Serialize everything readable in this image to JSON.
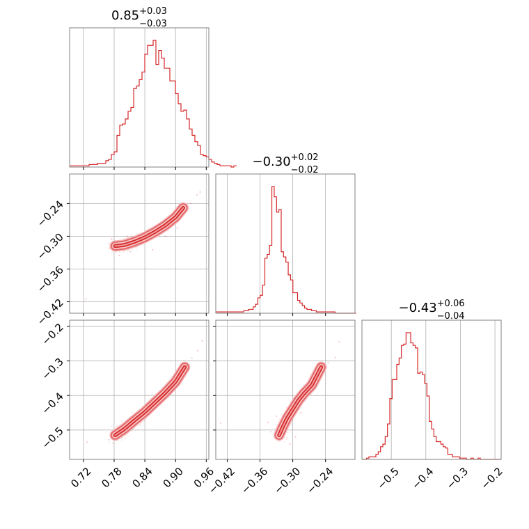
{
  "chart_data": {
    "type": "corner",
    "color": "#d62728",
    "parameters": [
      {
        "title_main": "0.85",
        "title_plus": "+0.03",
        "title_minus": "−0.03",
        "range": [
          0.693,
          0.965
        ],
        "ticks": [
          {
            "v": 0.72,
            "label": "0.72"
          },
          {
            "v": 0.78,
            "label": "0.78"
          },
          {
            "v": 0.84,
            "label": "0.84"
          },
          {
            "v": 0.9,
            "label": "0.90"
          },
          {
            "v": 0.96,
            "label": "0.96"
          }
        ]
      },
      {
        "title_main": "−0.30",
        "title_plus": "+0.02",
        "title_minus": "−0.02",
        "range": [
          -0.441,
          -0.186
        ],
        "ticks": [
          {
            "v": -0.42,
            "label": "−0.42"
          },
          {
            "v": -0.36,
            "label": "−0.36"
          },
          {
            "v": -0.3,
            "label": "−0.30"
          },
          {
            "v": -0.24,
            "label": "−0.24"
          }
        ]
      },
      {
        "title_main": "−0.43",
        "title_plus": "+0.06",
        "title_minus": "−0.04",
        "range": [
          -0.585,
          -0.182
        ],
        "ticks": [
          {
            "v": -0.5,
            "label": "−0.5"
          },
          {
            "v": -0.4,
            "label": "−0.4"
          },
          {
            "v": -0.3,
            "label": "−0.3"
          },
          {
            "v": -0.2,
            "label": "−0.2"
          }
        ]
      }
    ],
    "histograms": [
      {
        "param": 0,
        "bin_start": 0.693,
        "bin_width": 0.00544,
        "counts": [
          1,
          1,
          1,
          1,
          1,
          1,
          1,
          2,
          2,
          2,
          3,
          3,
          3,
          5,
          6,
          10,
          12,
          25,
          33,
          34,
          38,
          44,
          47,
          62,
          64,
          69,
          75,
          89,
          96,
          96,
          100,
          81,
          92,
          86,
          78,
          78,
          68,
          68,
          58,
          50,
          44,
          45,
          38,
          30,
          25,
          20,
          17,
          10,
          9,
          8,
          6,
          4,
          3,
          2,
          1,
          1,
          1,
          1,
          0,
          1
        ]
      },
      {
        "param": 1,
        "bin_start": -0.441,
        "bin_width": 0.00428,
        "counts": [
          1,
          1,
          1,
          1,
          1,
          1,
          1,
          1,
          1,
          1,
          1,
          1,
          2,
          2,
          3,
          3,
          5,
          7,
          12,
          14,
          22,
          43,
          46,
          53,
          99,
          91,
          79,
          81,
          48,
          44,
          40,
          30,
          26,
          16,
          16,
          10,
          8,
          6,
          4,
          3,
          3,
          2,
          2,
          1,
          1,
          1,
          1,
          1,
          1,
          1,
          1,
          0,
          0,
          0,
          0,
          0,
          0,
          0,
          0,
          0
        ]
      },
      {
        "param": 2,
        "bin_start": -0.585,
        "bin_width": 0.00672,
        "counts": [
          0,
          0,
          1,
          2,
          2,
          2,
          4,
          6,
          10,
          12,
          18,
          28,
          48,
          63,
          63,
          75,
          80,
          90,
          91,
          100,
          100,
          92,
          90,
          88,
          68,
          69,
          67,
          60,
          50,
          30,
          24,
          18,
          14,
          14,
          12,
          10,
          9,
          4,
          4,
          2,
          2,
          2,
          1,
          1,
          1,
          0,
          0,
          1,
          0,
          0,
          1,
          0,
          0,
          0,
          0,
          0,
          0,
          0,
          0,
          0
        ]
      }
    ],
    "pairs": [
      {
        "x_param": 0,
        "y_param": 1,
        "ridge": [
          [
            0.782,
            -0.318
          ],
          [
            0.8,
            -0.316
          ],
          [
            0.82,
            -0.31
          ],
          [
            0.84,
            -0.302
          ],
          [
            0.86,
            -0.292
          ],
          [
            0.88,
            -0.28
          ],
          [
            0.9,
            -0.265
          ],
          [
            0.915,
            -0.248
          ]
        ],
        "outliers": [
          [
            0.725,
            -0.415
          ],
          [
            0.775,
            -0.305
          ],
          [
            0.79,
            -0.335
          ],
          [
            0.805,
            -0.3
          ],
          [
            0.855,
            -0.325
          ],
          [
            0.88,
            -0.3
          ],
          [
            0.93,
            -0.24
          ],
          [
            0.942,
            -0.224
          ],
          [
            0.948,
            -0.219
          ],
          [
            0.77,
            -0.322
          ],
          [
            0.812,
            -0.328
          ],
          [
            0.903,
            -0.285
          ]
        ]
      },
      {
        "x_param": 0,
        "y_param": 2,
        "ridge": [
          [
            0.782,
            -0.515
          ],
          [
            0.8,
            -0.497
          ],
          [
            0.82,
            -0.472
          ],
          [
            0.84,
            -0.448
          ],
          [
            0.86,
            -0.42
          ],
          [
            0.88,
            -0.392
          ],
          [
            0.9,
            -0.36
          ],
          [
            0.918,
            -0.318
          ]
        ],
        "outliers": [
          [
            0.727,
            -0.535
          ],
          [
            0.77,
            -0.528
          ],
          [
            0.778,
            -0.538
          ],
          [
            0.795,
            -0.521
          ],
          [
            0.932,
            -0.292
          ],
          [
            0.943,
            -0.27
          ],
          [
            0.952,
            -0.242
          ],
          [
            0.82,
            -0.49
          ],
          [
            0.86,
            -0.405
          ],
          [
            0.89,
            -0.395
          ]
        ]
      },
      {
        "x_param": 1,
        "y_param": 2,
        "ridge": [
          [
            -0.325,
            -0.515
          ],
          [
            -0.318,
            -0.49
          ],
          [
            -0.31,
            -0.465
          ],
          [
            -0.3,
            -0.44
          ],
          [
            -0.29,
            -0.415
          ],
          [
            -0.28,
            -0.395
          ],
          [
            -0.265,
            -0.37
          ],
          [
            -0.248,
            -0.318
          ]
        ],
        "outliers": [
          [
            -0.432,
            -0.48
          ],
          [
            -0.345,
            -0.478
          ],
          [
            -0.34,
            -0.505
          ],
          [
            -0.305,
            -0.54
          ],
          [
            -0.295,
            -0.52
          ],
          [
            -0.235,
            -0.305
          ],
          [
            -0.222,
            -0.29
          ],
          [
            -0.215,
            -0.245
          ],
          [
            -0.33,
            -0.46
          ],
          [
            -0.285,
            -0.45
          ]
        ]
      }
    ]
  }
}
